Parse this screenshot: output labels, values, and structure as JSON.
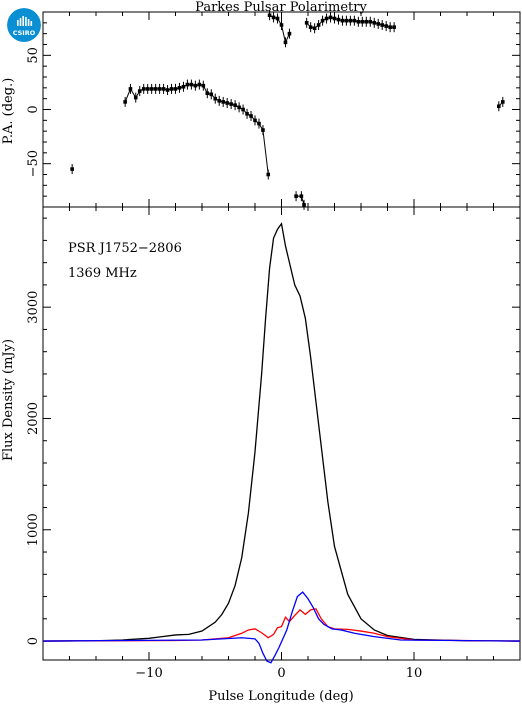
{
  "logo": {
    "text": "CSIRO",
    "color": "#0a8fd4"
  },
  "chart_data": [
    {
      "type": "scatter",
      "title": "Parkes Pulsar Polarimetry",
      "xlabel": "",
      "ylabel": "P.A. (deg.)",
      "xlim": [
        -18,
        18
      ],
      "ylim": [
        -90,
        90
      ],
      "yticks": [
        -50,
        0,
        50
      ],
      "error_bars": true,
      "series": [
        {
          "color": "#000000",
          "points": [
            [
              -15.8,
              -55
            ],
            [
              -11.8,
              7
            ],
            [
              -11.4,
              19
            ],
            [
              -11.0,
              11
            ],
            [
              -10.7,
              17
            ],
            [
              -10.4,
              19
            ],
            [
              -10.1,
              19
            ],
            [
              -9.8,
              19
            ],
            [
              -9.5,
              19
            ],
            [
              -9.2,
              19
            ],
            [
              -8.9,
              19
            ],
            [
              -8.6,
              18
            ],
            [
              -8.3,
              19
            ],
            [
              -8.0,
              19
            ],
            [
              -7.7,
              20
            ],
            [
              -7.4,
              21
            ],
            [
              -7.1,
              23
            ],
            [
              -6.8,
              23
            ],
            [
              -6.5,
              22
            ],
            [
              -6.2,
              23
            ],
            [
              -5.9,
              22
            ],
            [
              -5.6,
              15
            ],
            [
              -5.3,
              14
            ],
            [
              -5.0,
              10
            ],
            [
              -4.7,
              8
            ],
            [
              -4.4,
              7
            ],
            [
              -4.1,
              6
            ],
            [
              -3.8,
              5
            ],
            [
              -3.5,
              4
            ],
            [
              -3.2,
              2
            ],
            [
              -2.9,
              0
            ],
            [
              -2.6,
              -4
            ],
            [
              -2.3,
              -6
            ],
            [
              -2.0,
              -10
            ],
            [
              -1.7,
              -13
            ],
            [
              -1.4,
              -19
            ],
            [
              -1.0,
              -60
            ],
            [
              1.1,
              -80
            ],
            [
              1.5,
              -80
            ],
            [
              1.7,
              -88
            ]
          ]
        },
        {
          "color": "#000000",
          "points": [
            [
              -0.9,
              87
            ],
            [
              -0.6,
              85
            ],
            [
              -0.3,
              84
            ],
            [
              0.0,
              78
            ],
            [
              0.3,
              62
            ],
            [
              0.6,
              70
            ]
          ]
        },
        {
          "color": "#000000",
          "points": [
            [
              1.9,
              80
            ],
            [
              2.2,
              76
            ],
            [
              2.5,
              75
            ],
            [
              2.8,
              78
            ],
            [
              3.1,
              82
            ],
            [
              3.4,
              84
            ],
            [
              3.7,
              85
            ],
            [
              4.0,
              84
            ],
            [
              4.3,
              83
            ],
            [
              4.6,
              82
            ],
            [
              4.9,
              82
            ],
            [
              5.2,
              82
            ],
            [
              5.5,
              82
            ],
            [
              5.8,
              81
            ],
            [
              6.1,
              81
            ],
            [
              6.4,
              81
            ],
            [
              6.7,
              81
            ],
            [
              7.0,
              80
            ],
            [
              7.3,
              79
            ],
            [
              7.6,
              78
            ],
            [
              7.9,
              77
            ],
            [
              8.2,
              76
            ],
            [
              8.5,
              76
            ]
          ]
        },
        {
          "color": "#000000",
          "points": [
            [
              16.4,
              3
            ],
            [
              16.7,
              7
            ]
          ]
        }
      ]
    },
    {
      "type": "line",
      "xlabel": "Pulse Longitude (deg)",
      "ylabel": "Flux Density (mJy)",
      "xlim": [
        -18,
        18
      ],
      "ylim": [
        -170,
        3900
      ],
      "xticks": [
        -10,
        0,
        10
      ],
      "yticks": [
        0,
        1000,
        2000,
        3000
      ],
      "annotations": [
        "PSR J1752−2806",
        "1369 MHz"
      ],
      "series": [
        {
          "color": "#000000",
          "x": [
            -18,
            -14,
            -12,
            -10,
            -9,
            -8,
            -7,
            -6,
            -5,
            -4.5,
            -4,
            -3.5,
            -3,
            -2.5,
            -2,
            -1.5,
            -1.2,
            -0.9,
            -0.6,
            -0.3,
            0,
            0.3,
            0.6,
            1.0,
            1.4,
            1.8,
            2.2,
            2.6,
            3.0,
            3.5,
            4.0,
            5.0,
            6.0,
            7.0,
            8.0,
            10.0,
            14.0,
            18.0
          ],
          "y": [
            0,
            3,
            10,
            25,
            40,
            55,
            60,
            90,
            170,
            240,
            340,
            500,
            750,
            1150,
            1700,
            2400,
            2900,
            3350,
            3620,
            3700,
            3750,
            3550,
            3400,
            3200,
            3100,
            2900,
            2550,
            2150,
            1750,
            1250,
            850,
            420,
            200,
            100,
            50,
            15,
            3,
            0
          ]
        },
        {
          "color": "#ff0000",
          "x": [
            -18,
            -8,
            -6,
            -4,
            -3,
            -2.5,
            -2,
            -1.5,
            -1.0,
            -0.6,
            -0.3,
            0.0,
            0.3,
            0.6,
            1.0,
            1.4,
            1.8,
            2.2,
            2.6,
            3.0,
            3.5,
            4.0,
            5.0,
            6.0,
            7.0,
            8.0,
            10.0,
            18.0
          ],
          "y": [
            0,
            5,
            10,
            30,
            70,
            100,
            110,
            75,
            30,
            60,
            120,
            130,
            215,
            175,
            230,
            280,
            240,
            280,
            290,
            200,
            130,
            110,
            105,
            90,
            70,
            40,
            10,
            0
          ]
        },
        {
          "color": "#0000ff",
          "x": [
            -18,
            -6,
            -3,
            -2,
            -1.7,
            -1.4,
            -1.1,
            -0.8,
            -0.5,
            -0.2,
            0.1,
            0.4,
            0.8,
            1.2,
            1.6,
            2.0,
            2.4,
            2.8,
            3.2,
            3.8,
            4.5,
            5.5,
            7.0,
            9.0,
            18.0
          ],
          "y": [
            0,
            10,
            30,
            20,
            -20,
            -110,
            -180,
            -195,
            -130,
            -60,
            20,
            100,
            260,
            400,
            440,
            380,
            300,
            200,
            150,
            110,
            100,
            70,
            40,
            10,
            0
          ]
        }
      ]
    }
  ]
}
